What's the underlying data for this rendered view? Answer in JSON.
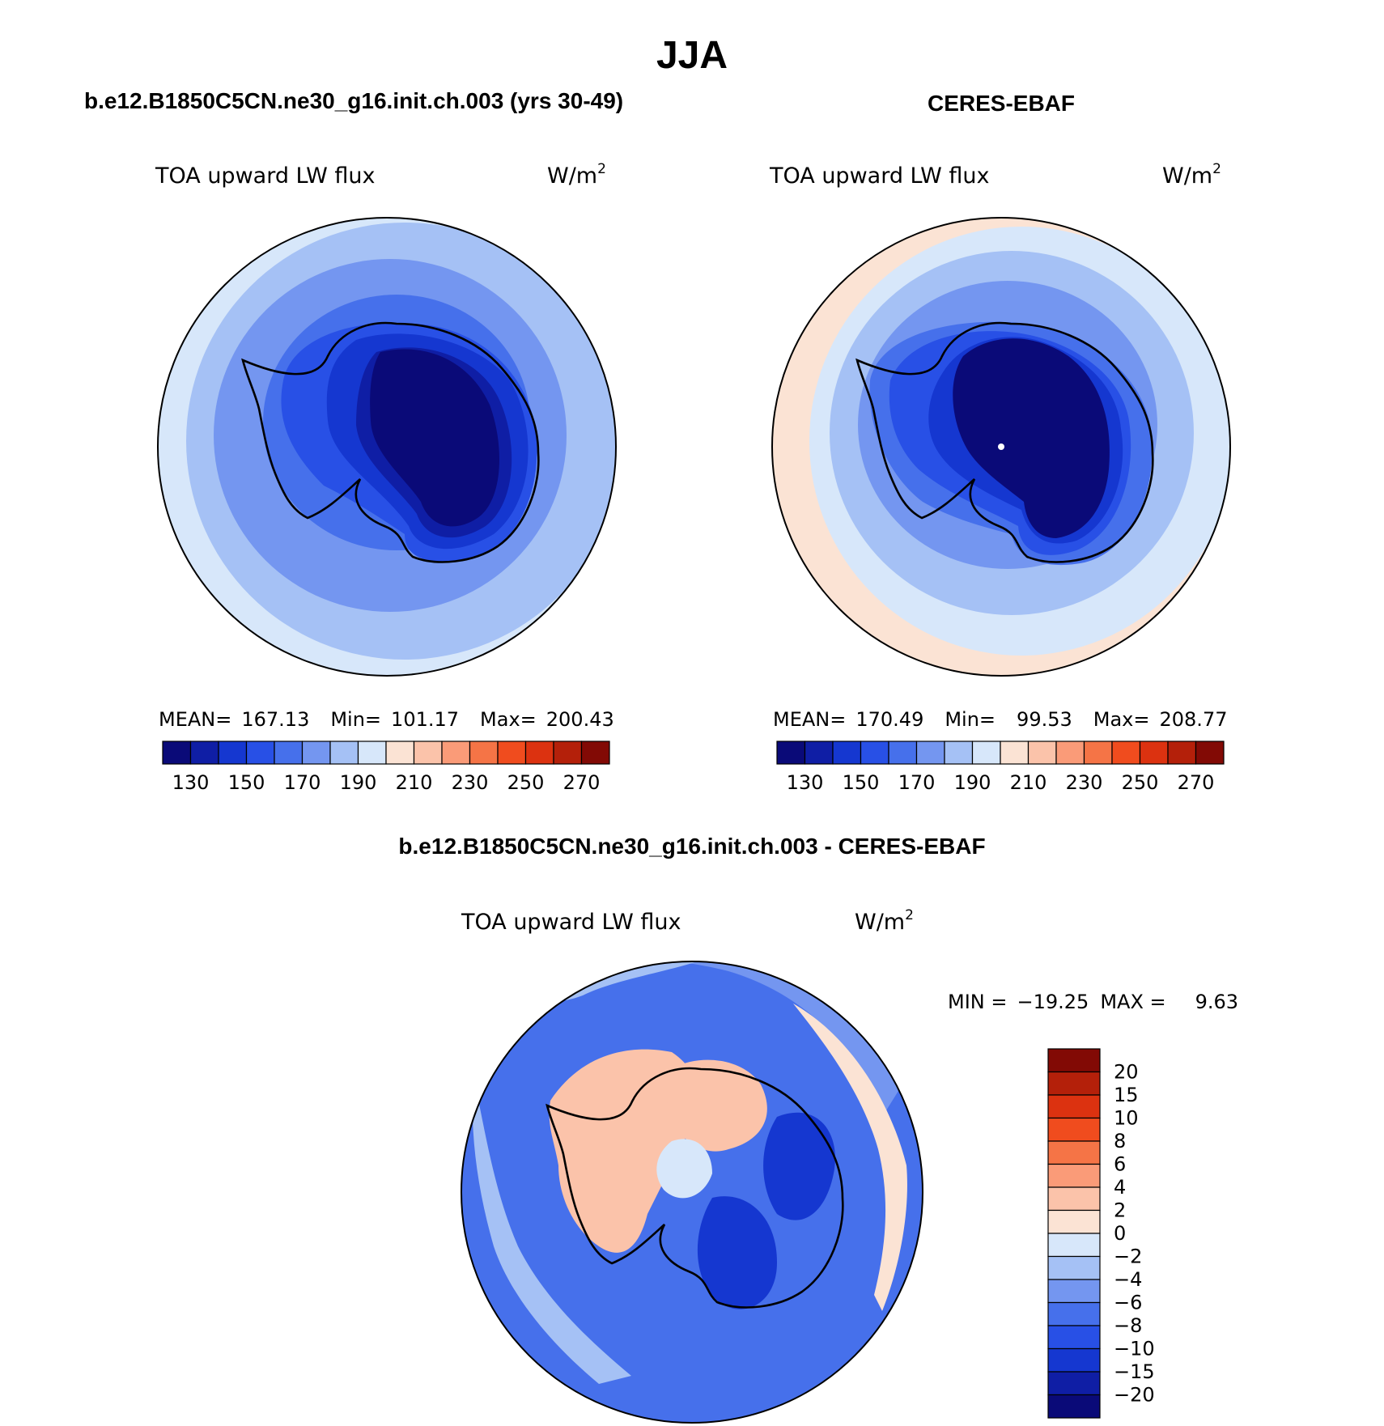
{
  "figure": {
    "title": "JJA",
    "variable": "TOA upward LW flux",
    "units_base": "W/m",
    "units_exp": "2"
  },
  "panels": [
    {
      "id": "model",
      "title": "b.e12.B1850C5CN.ne30_g16.init.ch.003 (yrs 30-49)",
      "stats": {
        "mean_label": "MEAN=",
        "mean": "167.13",
        "min_label": "Min=",
        "min": "101.17",
        "max_label": "Max=",
        "max": "200.43"
      },
      "zone_levels": [
        210,
        195,
        185,
        175,
        165,
        155,
        145,
        125
      ],
      "pole_dot": false
    },
    {
      "id": "obs",
      "title": "CERES-EBAF",
      "stats": {
        "mean_label": "MEAN=",
        "mean": "170.49",
        "min_label": "Min=",
        "min": "99.53",
        "max_label": "Max=",
        "max": "208.77"
      },
      "zone_levels": [
        205,
        195,
        185,
        175,
        165,
        155,
        145,
        125
      ],
      "pole_dot": true
    }
  ],
  "diff_panel": {
    "title": "b.e12.B1850C5CN.ne30_g16.init.ch.003 - CERES-EBAF",
    "min_label": "MIN =",
    "min": "−19.25",
    "max_label": "MAX =",
    "max": "9.63"
  },
  "colorbar_abs": {
    "colors": [
      "#0a0a78",
      "#0f1ea5",
      "#1537d0",
      "#2850e6",
      "#4670eb",
      "#7496f0",
      "#a5c1f5",
      "#d7e7fa",
      "#fbe3d4",
      "#fbc3aa",
      "#fa9b78",
      "#f57446",
      "#f04c1e",
      "#dc3210",
      "#b4200a",
      "#820a05"
    ],
    "tick_labels": [
      "130",
      "150",
      "170",
      "190",
      "210",
      "230",
      "250",
      "270"
    ]
  },
  "colorbar_diff": {
    "colors": [
      "#820a05",
      "#b4200a",
      "#dc3210",
      "#f04c1e",
      "#f57446",
      "#fa9b78",
      "#fbc3aa",
      "#fbe3d4",
      "#d7e7fa",
      "#a5c1f5",
      "#7496f0",
      "#4670eb",
      "#2850e6",
      "#1537d0",
      "#0f1ea5",
      "#0a0a78"
    ],
    "tick_labels": [
      "20",
      "15",
      "10",
      "8",
      "6",
      "4",
      "2",
      "0",
      "−2",
      "−4",
      "−6",
      "−8",
      "−10",
      "−15",
      "−20"
    ]
  }
}
